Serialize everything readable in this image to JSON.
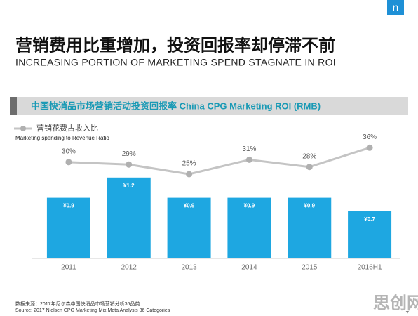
{
  "logo": "n",
  "title": "营销费用比重增加，投资回报率却停滞不前",
  "subtitle": "INCREASING PORTION OF MARKETING SPEND STAGNATE IN ROI",
  "chart_data": {
    "type": "bar",
    "title": "中国快消品市场营销活动投资回报率  China CPG Marketing ROI (RMB)",
    "legend_subtitle": "Marketing spending to Revenue Ratio",
    "categories": [
      "2011",
      "2012",
      "2013",
      "2014",
      "2015",
      "2016H1"
    ],
    "ylim": [
      0,
      1.75
    ],
    "y2lim": [
      -10,
      39
    ],
    "series": [
      {
        "type": "bar",
        "color": "#1ea7e1",
        "values": [
          0.9,
          1.2,
          0.9,
          0.9,
          0.9,
          0.7
        ],
        "value_labels": [
          "¥0.9",
          "¥1.2",
          "¥0.9",
          "¥0.9",
          "¥0.9",
          "¥0.7"
        ]
      },
      {
        "type": "line",
        "name": "营销花费占收入比",
        "color": "#c4c4c4",
        "axis": "y2",
        "values": [
          30,
          29,
          25,
          31,
          28,
          36
        ],
        "value_labels": [
          "30%",
          "29%",
          "25%",
          "31%",
          "28%",
          "36%"
        ]
      }
    ]
  },
  "source": [
    "数据来源：2017年尼尔森中国快消品市场营销分析36品类",
    "Source: 2017 Nielsen CPG Marketing Mix Meta Analysis 36 Categories"
  ],
  "page_number": "7",
  "watermark": "思创网"
}
